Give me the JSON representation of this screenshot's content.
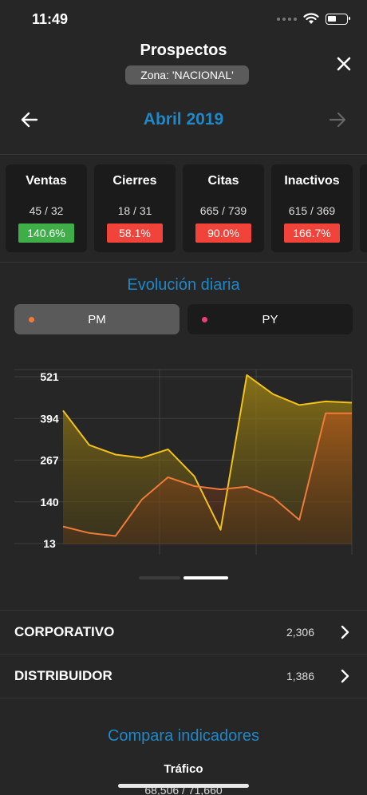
{
  "status": {
    "time": "11:49"
  },
  "header": {
    "title": "Prospectos",
    "zone": "Zona: 'NACIONAL'"
  },
  "month_nav": {
    "label": "Abril 2019"
  },
  "kpis": [
    {
      "title": "Ventas",
      "values": "45 / 32",
      "pct": "140.6%",
      "color": "#3fae49"
    },
    {
      "title": "Cierres",
      "values": "18 / 31",
      "pct": "58.1%",
      "color": "#f0443a"
    },
    {
      "title": "Citas",
      "values": "665 / 739",
      "pct": "90.0%",
      "color": "#f0443a"
    },
    {
      "title": "Inactivos",
      "values": "615 / 369",
      "pct": "166.7%",
      "color": "#f0443a"
    }
  ],
  "evolution": {
    "title": "Evolución diaria",
    "toggles": [
      {
        "label": "PM",
        "dot_color": "#f07a3a",
        "active": true
      },
      {
        "label": "PY",
        "dot_color": "#ee3d7a",
        "active": false
      }
    ]
  },
  "chart_data": {
    "type": "area",
    "yticks": [
      "521",
      "394",
      "267",
      "140",
      "13"
    ],
    "ylim": [
      13,
      521
    ],
    "grid": true,
    "x": [
      1,
      2,
      3,
      4,
      5,
      6,
      7,
      8,
      9,
      10,
      11,
      12
    ],
    "series": [
      {
        "values": [
          418,
          313,
          284,
          274,
          300,
          218,
          55,
          526,
          468,
          435,
          446,
          442
        ],
        "color": "#f2c21a"
      },
      {
        "values": [
          65,
          45,
          36,
          147,
          215,
          188,
          178,
          186,
          153,
          85,
          410,
          410
        ],
        "color": "#f07a3a"
      }
    ]
  },
  "list": [
    {
      "label": "CORPORATIVO",
      "value": "2,306"
    },
    {
      "label": "DISTRIBUIDOR",
      "value": "1,386"
    }
  ],
  "compare": {
    "title": "Compara indicadores",
    "subtitle": "Tráfico",
    "values": "68,506 / 71,660"
  }
}
